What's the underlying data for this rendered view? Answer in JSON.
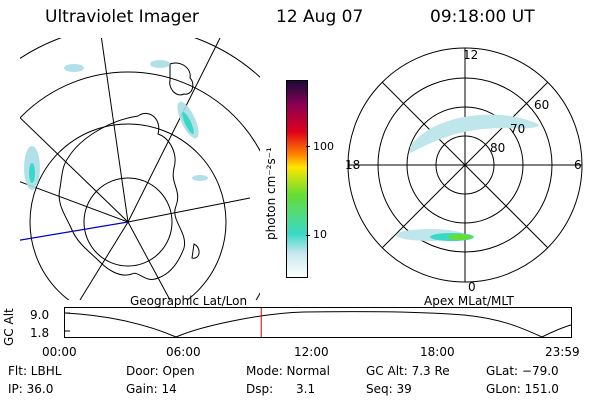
{
  "header": {
    "instrument": "Ultraviolet Imager",
    "date": "12 Aug 07",
    "time": "09:18:00 UT"
  },
  "colorbar": {
    "unit_label": "photon cm⁻²s⁻¹",
    "ticks": [
      "100",
      "10"
    ],
    "scale": "log"
  },
  "map_labels": {
    "left": "Geographic Lat/Lon",
    "right": "Apex MLat/MLT"
  },
  "polar_plot": {
    "mlt_labels": [
      "12",
      "18",
      "6",
      "0"
    ],
    "lat_labels": [
      "60",
      "70",
      "80"
    ]
  },
  "altitude_plot": {
    "ylabel": "GC Alt",
    "y_ticks": [
      "9.0",
      "1.8"
    ],
    "x_ticks": [
      "00:00",
      "06:00",
      "12:00",
      "18:00",
      "23:59"
    ],
    "current_time": "09:18"
  },
  "status": {
    "filter": "Flt: LBHL",
    "ip": "IP: 36.0",
    "door": "Door: Open",
    "gain": "Gain: 14",
    "mode": "Mode: Normal",
    "dsp": "Dsp:      3.1",
    "gc_alt": "GC Alt: 7.3 Re",
    "seq": "Seq: 39",
    "glat": "GLat: −79.0",
    "glon": "GLon: 151.0"
  },
  "colors": {
    "colorbar_stops": [
      "#ffffff",
      "#c8e8ee",
      "#3ad8c8",
      "#66dd33",
      "#ffe600",
      "#ff8a00",
      "#e0001a",
      "#8a0055",
      "#1a0a3a"
    ],
    "time_marker": "#cc0000",
    "meridian_line": "#0000cc"
  }
}
